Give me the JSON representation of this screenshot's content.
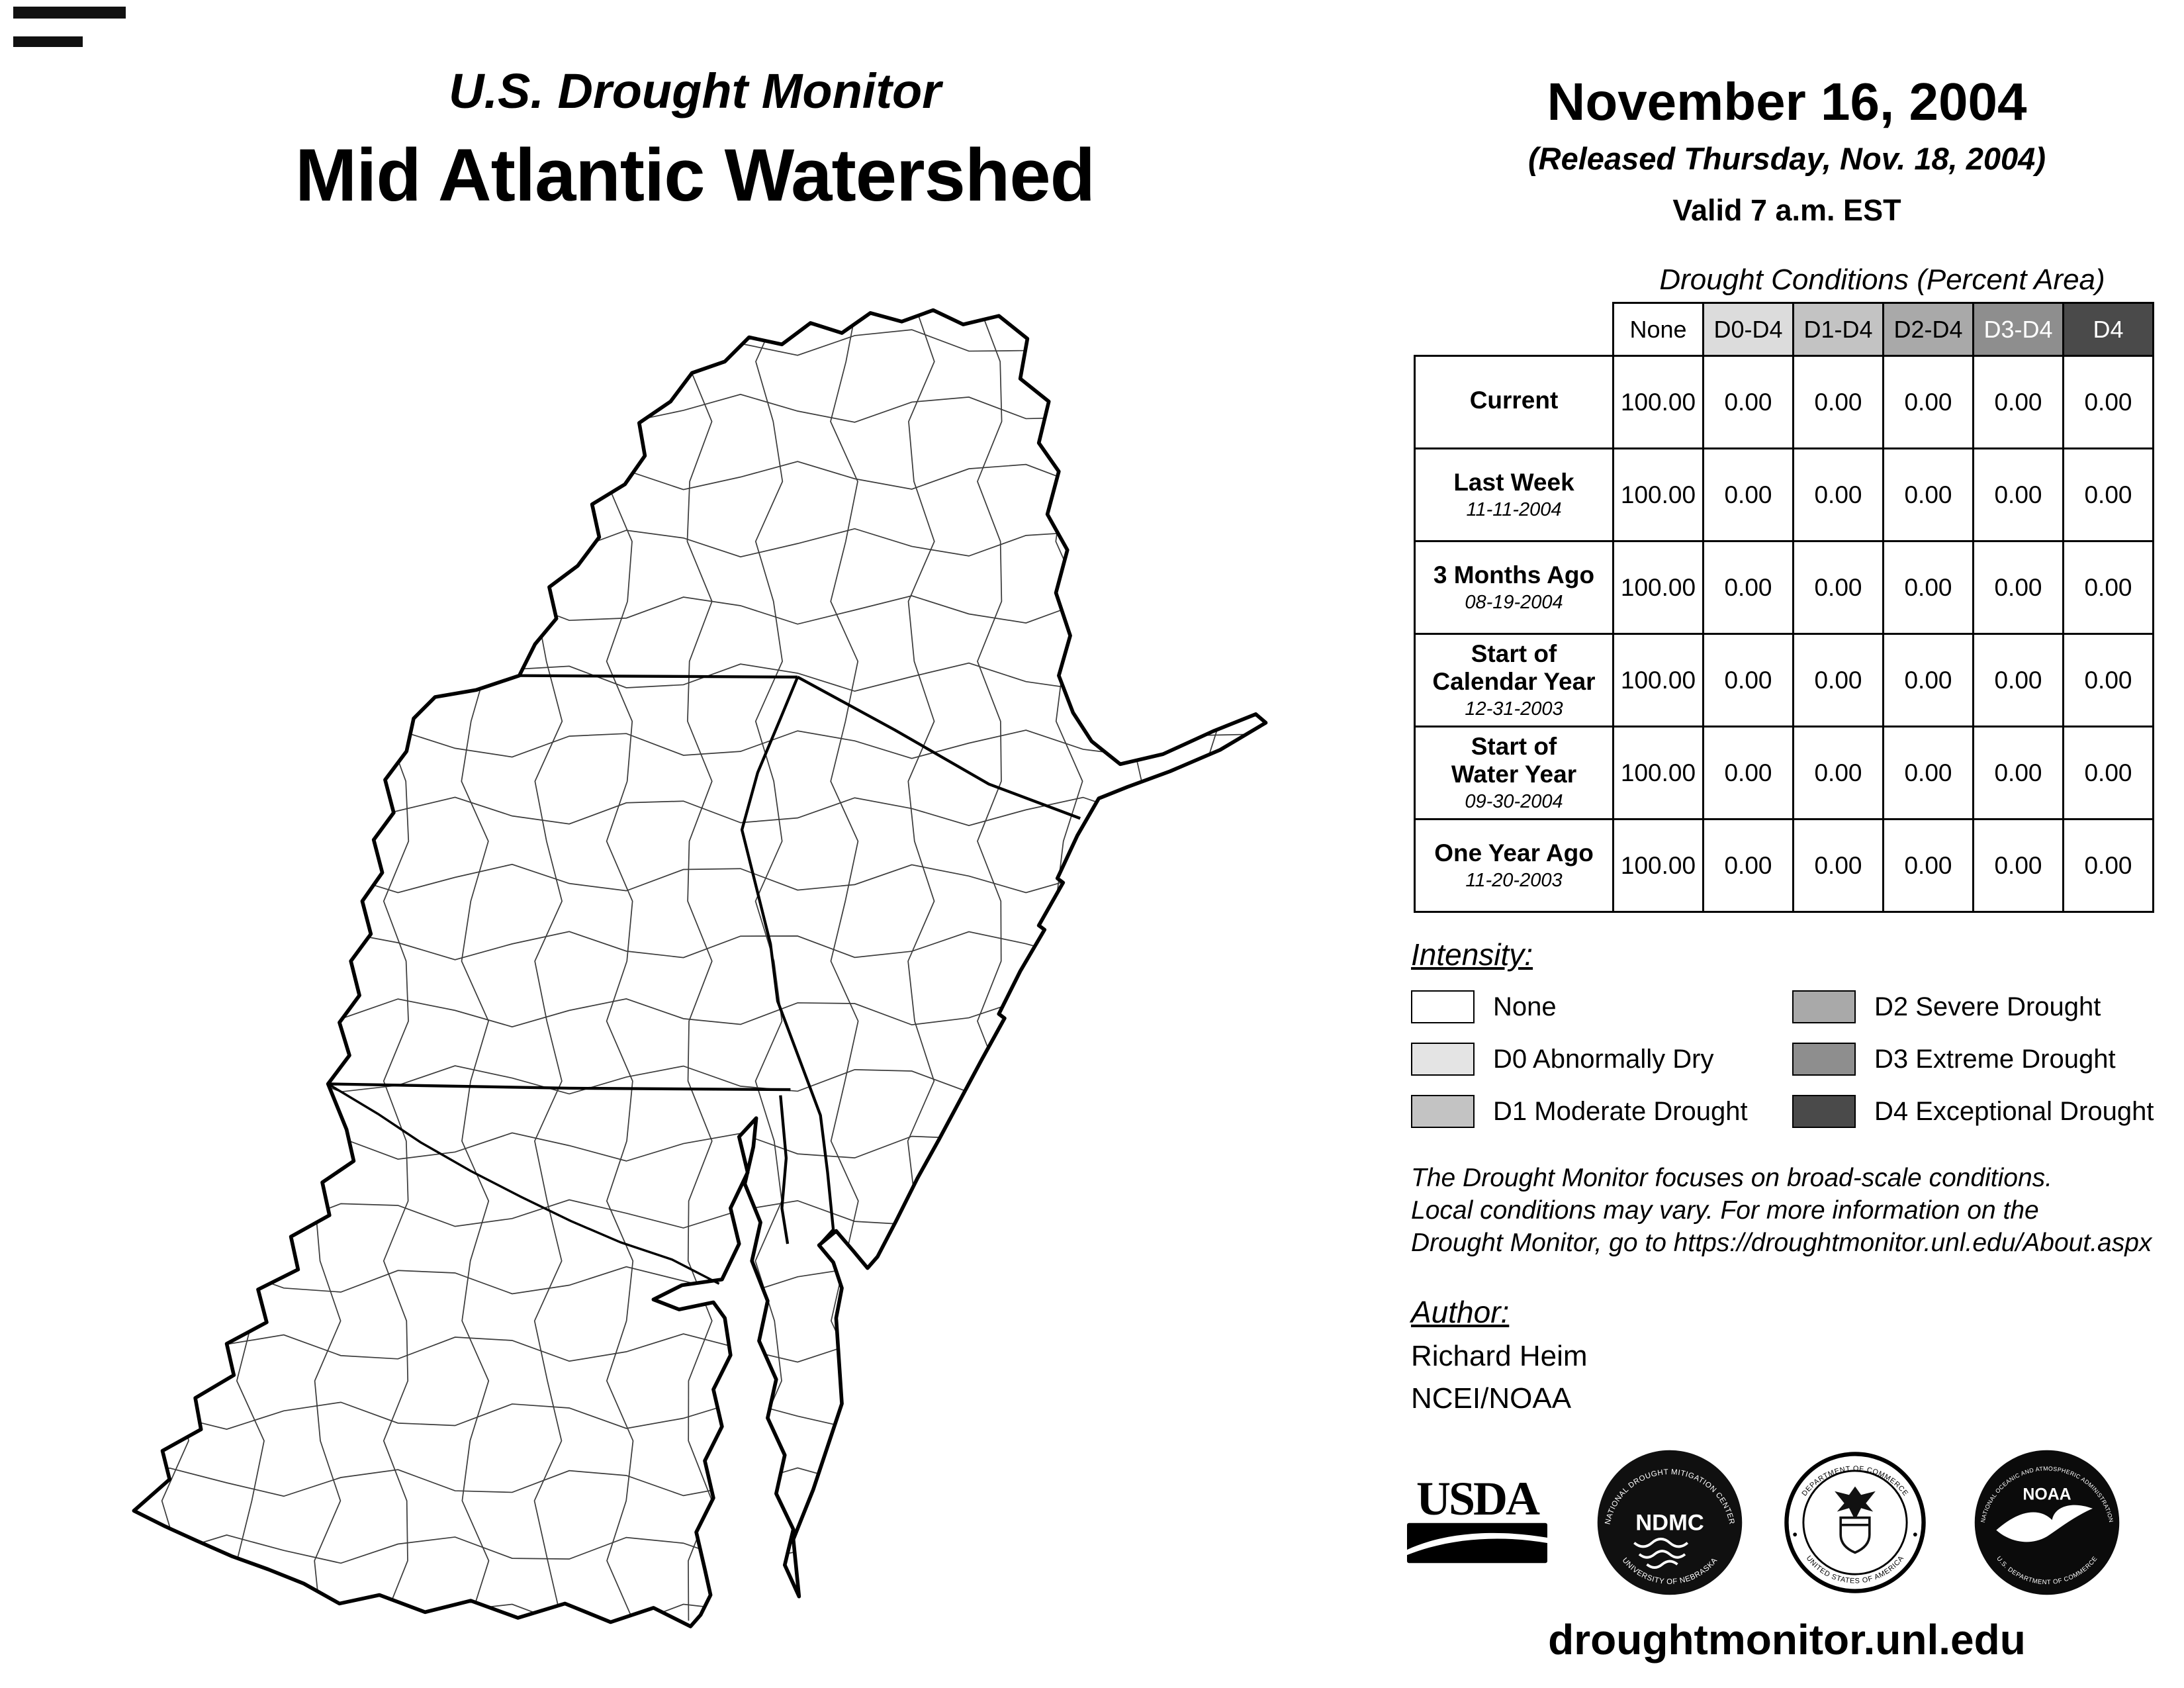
{
  "header": {
    "program": "U.S. Drought Monitor",
    "region": "Mid Atlantic Watershed",
    "date": "November 16, 2004",
    "released": "(Released Thursday, Nov. 18, 2004)",
    "valid": "Valid 7 a.m. EST"
  },
  "table": {
    "title": "Drought Conditions (Percent Area)",
    "columns": [
      "None",
      "D0-D4",
      "D1-D4",
      "D2-D4",
      "D3-D4",
      "D4"
    ],
    "header_bg": [
      "#ffffff",
      "#dcdcdc",
      "#c3c3c3",
      "#a9a9a9",
      "#8e8e8e",
      "#4a4a4a"
    ],
    "header_fg": [
      "#000000",
      "#000000",
      "#000000",
      "#000000",
      "#ffffff",
      "#ffffff"
    ],
    "rows": [
      {
        "label": "Current",
        "date": "",
        "values": [
          "100.00",
          "0.00",
          "0.00",
          "0.00",
          "0.00",
          "0.00"
        ]
      },
      {
        "label": "Last Week",
        "date": "11-11-2004",
        "values": [
          "100.00",
          "0.00",
          "0.00",
          "0.00",
          "0.00",
          "0.00"
        ]
      },
      {
        "label": "3 Months Ago",
        "date": "08-19-2004",
        "values": [
          "100.00",
          "0.00",
          "0.00",
          "0.00",
          "0.00",
          "0.00"
        ]
      },
      {
        "label": "Start of\nCalendar Year",
        "date": "12-31-2003",
        "values": [
          "100.00",
          "0.00",
          "0.00",
          "0.00",
          "0.00",
          "0.00"
        ]
      },
      {
        "label": "Start of\nWater Year",
        "date": "09-30-2004",
        "values": [
          "100.00",
          "0.00",
          "0.00",
          "0.00",
          "0.00",
          "0.00"
        ]
      },
      {
        "label": "One Year Ago",
        "date": "11-20-2003",
        "values": [
          "100.00",
          "0.00",
          "0.00",
          "0.00",
          "0.00",
          "0.00"
        ]
      }
    ]
  },
  "legend": {
    "heading": "Intensity:",
    "items": [
      {
        "label": "None",
        "color": "#ffffff"
      },
      {
        "label": "D0 Abnormally Dry",
        "color": "#e4e4e4"
      },
      {
        "label": "D1 Moderate Drought",
        "color": "#c3c3c3"
      },
      {
        "label": "D2 Severe Drought",
        "color": "#a9a9a9"
      },
      {
        "label": "D3 Extreme Drought",
        "color": "#8e8e8e"
      },
      {
        "label": "D4 Exceptional Drought",
        "color": "#4a4a4a"
      }
    ]
  },
  "disclaimer": {
    "line1": "The Drought Monitor focuses on broad-scale conditions.",
    "line2": "Local conditions may vary. For more information on the",
    "line3": "Drought Monitor, go to https://droughtmonitor.unl.edu/About.aspx"
  },
  "author": {
    "heading": "Author:",
    "name": "Richard Heim",
    "org": "NCEI/NOAA"
  },
  "logos": {
    "usda": "USDA",
    "ndmc_center": "NDMC",
    "ndmc_top": "NATIONAL DROUGHT MITIGATION CENTER",
    "ndmc_bottom": "UNIVERSITY OF NEBRASKA",
    "doc_top": "DEPARTMENT OF COMMERCE",
    "doc_bottom": "UNITED STATES OF AMERICA",
    "noaa_center": "NOAA",
    "noaa_top": "NATIONAL OCEANIC AND ATMOSPHERIC ADMINISTRATION",
    "noaa_bottom": "U.S. DEPARTMENT OF COMMERCE"
  },
  "footer": {
    "url": "droughtmonitor.unl.edu"
  }
}
